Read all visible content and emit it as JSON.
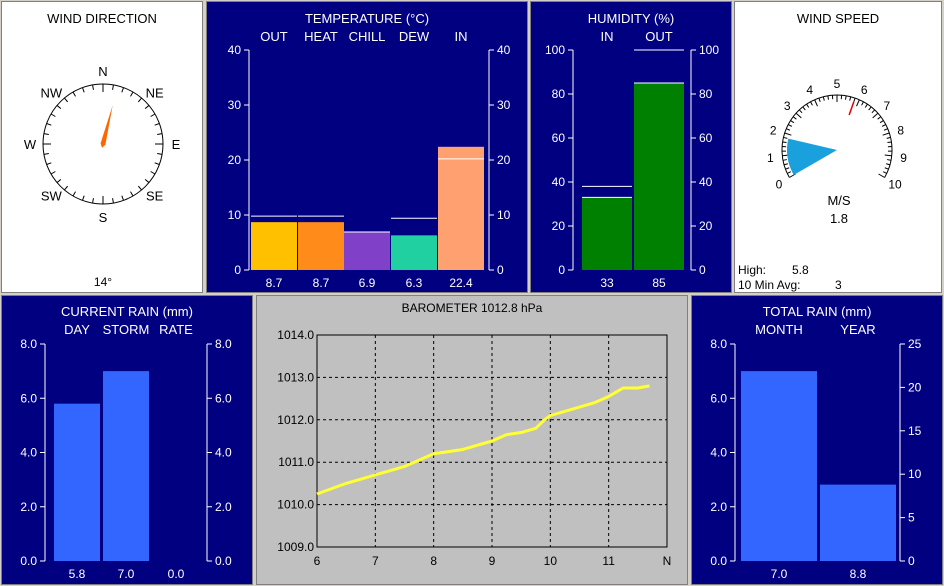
{
  "colors": {
    "panel_bg": "#000080",
    "temp_out": "#ffc000",
    "temp_heat": "#ff8c1a",
    "temp_chill": "#8040c8",
    "temp_dew": "#20d0a0",
    "temp_in": "#ffa070",
    "humidity_bar": "#008000",
    "rain_bar": "#3366ff",
    "wind_needle": "#ff6600",
    "wind_fan": "#1aa0dc",
    "baro_line": "#ffff33"
  },
  "wind_direction": {
    "title": "WIND DIRECTION",
    "value_label": "14°",
    "direction_deg": 14,
    "cardinals": [
      "N",
      "NE",
      "E",
      "SE",
      "S",
      "SW",
      "W",
      "NW"
    ]
  },
  "temperature": {
    "title": "TEMPERATURE  (°C)",
    "ticks": [
      "0",
      "10",
      "20",
      "30",
      "40"
    ],
    "max": 40,
    "bars": [
      {
        "label": "OUT",
        "value": 8.7,
        "display": "8.7",
        "high": 9.8,
        "color_key": "temp_out"
      },
      {
        "label": "HEAT",
        "value": 8.7,
        "display": "8.7",
        "high": 9.8,
        "color_key": "temp_heat"
      },
      {
        "label": "CHILL",
        "value": 6.9,
        "display": "6.9",
        "high": 6.9,
        "color_key": "temp_chill"
      },
      {
        "label": "DEW",
        "value": 6.3,
        "display": "6.3",
        "high": 9.4,
        "color_key": "temp_dew"
      },
      {
        "label": "IN",
        "value": 22.4,
        "display": "22.4",
        "high": 20.2,
        "color_key": "temp_in"
      }
    ]
  },
  "humidity": {
    "title": "HUMIDITY  (%)",
    "ticks": [
      "0",
      "20",
      "40",
      "60",
      "80",
      "100"
    ],
    "max": 100,
    "bars": [
      {
        "label": "IN",
        "value": 33,
        "display": "33",
        "high": 38
      },
      {
        "label": "OUT",
        "value": 85,
        "display": "85",
        "high": 100
      }
    ]
  },
  "wind_speed": {
    "title": "WIND SPEED",
    "unit": "M/S",
    "value": "1.8",
    "scale": [
      "0",
      "1",
      "2",
      "3",
      "4",
      "5",
      "6",
      "7",
      "8",
      "9",
      "10"
    ],
    "speed": 1.8,
    "high_speed": 5.8,
    "high_label": "High:",
    "high_value": "5.8",
    "avg_label": "10 Min Avg:",
    "avg_value": "3"
  },
  "current_rain": {
    "title": "CURRENT RAIN  (mm)",
    "ticks": [
      "0.0",
      "2.0",
      "4.0",
      "6.0",
      "8.0"
    ],
    "max": 8,
    "bars": [
      {
        "label": "DAY",
        "value": 5.8,
        "display": "5.8"
      },
      {
        "label": "STORM",
        "value": 7.0,
        "display": "7.0"
      },
      {
        "label": "RATE",
        "value": 0.0,
        "display": "0.0"
      }
    ]
  },
  "barometer": {
    "title": "BAROMETER 1012.8 hPa",
    "y_ticks": [
      "1009.0",
      "1010.0",
      "1011.0",
      "1012.0",
      "1013.0",
      "1014.0"
    ],
    "x_ticks": [
      "6",
      "7",
      "8",
      "9",
      "10",
      "11",
      "N"
    ]
  },
  "total_rain": {
    "title": "TOTAL RAIN  (mm)",
    "left_ticks": [
      "0.0",
      "2.0",
      "4.0",
      "6.0",
      "8.0"
    ],
    "right_ticks": [
      "0",
      "5",
      "10",
      "15",
      "20",
      "25"
    ],
    "bars": [
      {
        "label": "MONTH",
        "value": 7.0,
        "display": "7.0",
        "scale_max": 8
      },
      {
        "label": "YEAR",
        "value": 8.8,
        "display": "8.8",
        "scale_max": 25
      }
    ]
  },
  "chart_data": {
    "type": "line",
    "title": "BAROMETER 1012.8 hPa",
    "xlabel": "",
    "ylabel": "",
    "xlim": [
      6,
      12
    ],
    "ylim": [
      1009.0,
      1014.0
    ],
    "grid": true,
    "series": [
      {
        "x": [
          6.0,
          6.5,
          7.0,
          7.5,
          8.0,
          8.5,
          9.0,
          9.25,
          9.5,
          9.75,
          9.9,
          10.0,
          10.25,
          10.5,
          10.75,
          11.0,
          11.25,
          11.5,
          11.7
        ],
        "values": [
          1010.25,
          1010.5,
          1010.7,
          1010.9,
          1011.2,
          1011.3,
          1011.5,
          1011.65,
          1011.7,
          1011.8,
          1012.0,
          1012.1,
          1012.2,
          1012.3,
          1012.4,
          1012.55,
          1012.75,
          1012.75,
          1012.8
        ]
      }
    ]
  }
}
